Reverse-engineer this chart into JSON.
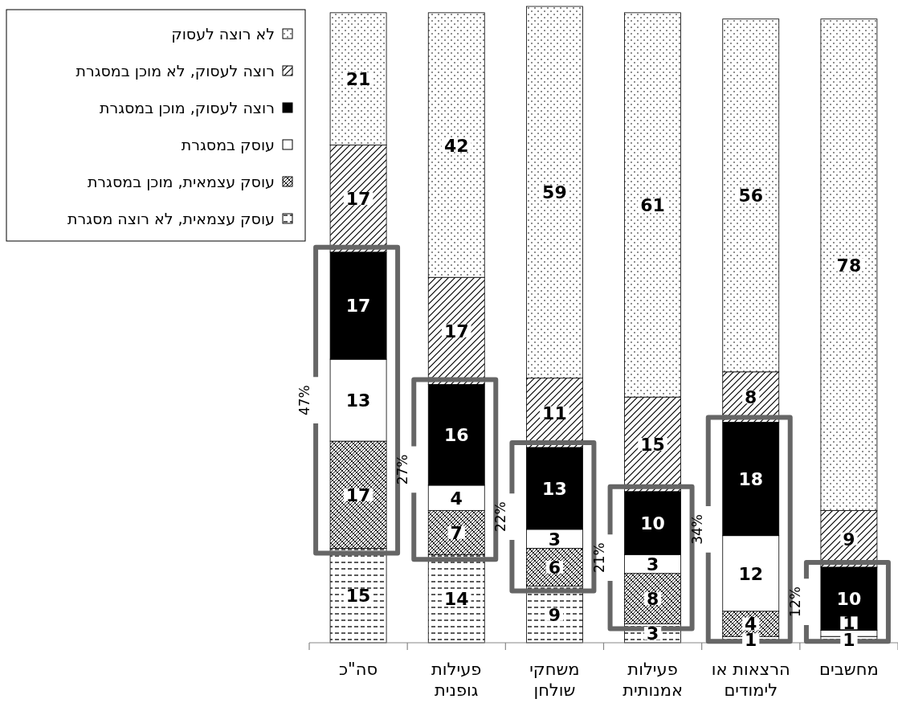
{
  "chart_data": {
    "type": "bar",
    "stacked": true,
    "data_labels": true,
    "legend": "top left",
    "categories": [
      "סה\"כ",
      "פעילות גופנית",
      "משחקי שולחן",
      "פעילות אמנותית",
      "הרצאות או לימודים",
      "מחשבים"
    ],
    "series": [
      {
        "name": "עוסק עצמאית, לא רוצה מסגרת",
        "color": "#000000",
        "values": [
          15,
          14,
          9,
          3,
          1,
          1
        ]
      },
      {
        "name": "עוסק עצמאית, מוכן במסגרת",
        "color": "#000000",
        "values": [
          17,
          7,
          6,
          8,
          4,
          null
        ]
      },
      {
        "name": "עוסק במסגרת",
        "color": "#ffffff",
        "values": [
          13,
          4,
          3,
          3,
          12,
          1
        ]
      },
      {
        "name": "רוצה לעסוק, מוכן במסגרת",
        "color": "#000000",
        "values": [
          17,
          16,
          13,
          10,
          18,
          10
        ]
      },
      {
        "name": "רוצה לעסוק, לא מוכן במסגרת",
        "color": "#000000",
        "values": [
          17,
          17,
          11,
          15,
          8,
          9
        ]
      },
      {
        "name": "לא רוצה לעסוק",
        "color": "#000000",
        "values": [
          21,
          42,
          59,
          61,
          56,
          78
        ]
      }
    ],
    "annotations": [
      "47%",
      "27%",
      "22%",
      "21%",
      "34%",
      "12%"
    ]
  }
}
